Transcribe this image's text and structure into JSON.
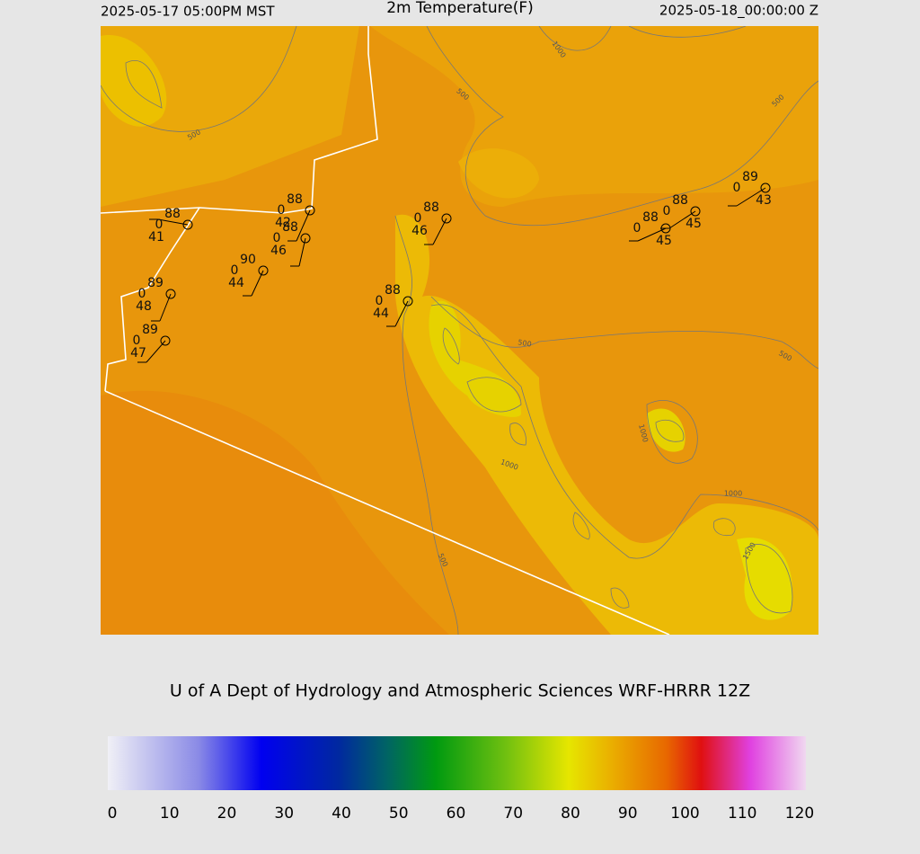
{
  "header": {
    "left": "2025-05-17 05:00PM MST",
    "title": "2m Temperature(F)",
    "right": "2025-05-18_00:00:00 Z"
  },
  "contour_labels": [
    "1000",
    "500",
    "500",
    "500",
    "500",
    "500",
    "1000",
    "1000",
    "1000",
    "500",
    "1500"
  ],
  "stations": [
    {
      "temp": 88,
      "wind": 0,
      "dewpoint": 41
    },
    {
      "temp": 88,
      "wind": 0,
      "dewpoint": 42
    },
    {
      "temp": 88,
      "wind": 0,
      "dewpoint": 46
    },
    {
      "temp": 90,
      "wind": 0,
      "dewpoint": 44
    },
    {
      "temp": 89,
      "wind": 0,
      "dewpoint": 48
    },
    {
      "temp": 89,
      "wind": 0,
      "dewpoint": 47
    },
    {
      "temp": 88,
      "wind": 0,
      "dewpoint": 46
    },
    {
      "temp": 88,
      "wind": 0,
      "dewpoint": 44
    },
    {
      "temp": 88,
      "wind": 0,
      "dewpoint": 45
    },
    {
      "temp": 88,
      "wind": 0,
      "dewpoint": 45
    },
    {
      "temp": 89,
      "wind": 0,
      "dewpoint": 43
    }
  ],
  "credit": "U of A Dept of Hydrology and Atmospheric Sciences WRF-HRRR 12Z",
  "colorbar": {
    "lim": [
      0,
      120
    ],
    "ticks": [
      0,
      10,
      20,
      30,
      40,
      50,
      60,
      70,
      80,
      90,
      100,
      110,
      120
    ]
  }
}
